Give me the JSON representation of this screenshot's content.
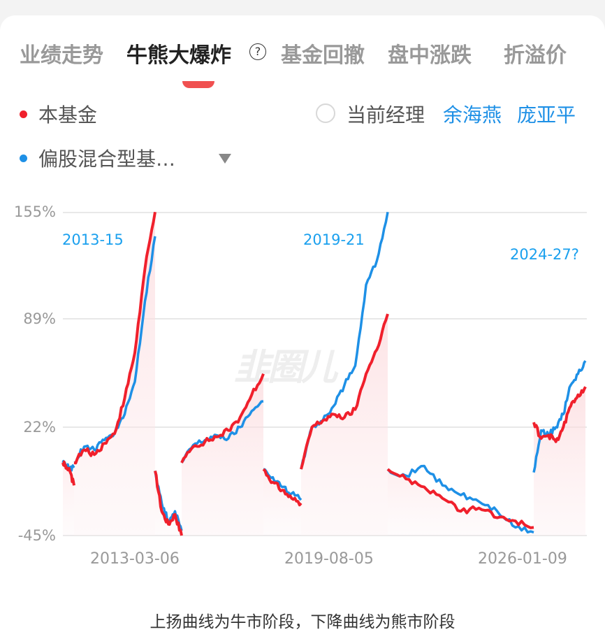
{
  "tabs": [
    {
      "label": "业绩走势",
      "active": false
    },
    {
      "label": "牛熊大爆炸",
      "active": true
    },
    {
      "label": "基金回撤",
      "active": false
    },
    {
      "label": "盘中涨跌",
      "active": false
    },
    {
      "label": "折溢价",
      "active": false
    }
  ],
  "help_icon": "?",
  "legend": {
    "fund": {
      "label": "本基金",
      "color": "#f0202c"
    },
    "benchmark": {
      "label": "偏股混合型基…",
      "color": "#1e90e6"
    },
    "current_manager_label": "当前经理",
    "managers": [
      "余海燕",
      "庞亚平"
    ]
  },
  "watermark": "韭圈儿",
  "footnote": "上扬曲线为牛市阶段，下降曲线为熊市阶段",
  "chart_data": {
    "type": "line",
    "title": "牛熊大爆炸",
    "xlabel": "",
    "ylabel": "",
    "ylim": [
      -45,
      155
    ],
    "yticks": [
      "155%",
      "89%",
      "22%",
      "-45%"
    ],
    "xticks": [
      "2013-03-06",
      "2019-08-05",
      "2026-01-09"
    ],
    "grid": true,
    "legend_position": "top",
    "annotations": [
      "2013-15",
      "2019-21",
      "2024-27?"
    ],
    "segments": [
      {
        "phase": "bear",
        "fund": [
          0,
          -3,
          -6,
          -14
        ],
        "benchmark": [
          0,
          -2,
          -4,
          -2
        ]
      },
      {
        "phase": "bull",
        "fund": [
          0,
          8,
          5,
          12,
          18,
          40,
          68,
          120,
          155
        ],
        "benchmark": [
          0,
          10,
          8,
          14,
          18,
          30,
          50,
          100,
          140
        ]
      },
      {
        "phase": "bear",
        "fund": [
          -5,
          -30,
          -38,
          -32,
          -45
        ],
        "benchmark": [
          -5,
          -25,
          -36,
          -30,
          -42
        ]
      },
      {
        "phase": "bull",
        "fund": [
          0,
          10,
          13,
          16,
          20,
          28,
          42,
          55
        ],
        "benchmark": [
          0,
          11,
          14,
          17,
          15,
          22,
          32,
          38
        ]
      },
      {
        "phase": "bear",
        "fund": [
          -4,
          -12,
          -17,
          -22,
          -25
        ],
        "benchmark": [
          -4,
          -9,
          -15,
          -19,
          -23
        ]
      },
      {
        "phase": "bull",
        "fund": [
          -4,
          22,
          26,
          30,
          28,
          33,
          55,
          70,
          92
        ],
        "benchmark": [
          -4,
          22,
          26,
          35,
          48,
          60,
          110,
          125,
          155
        ]
      },
      {
        "phase": "bear",
        "fund": [
          -4,
          -10,
          -15,
          -22,
          -30,
          -28,
          -34,
          -36,
          -40
        ],
        "benchmark": [
          -4,
          -8,
          -2,
          -14,
          -20,
          -24,
          -30,
          -40,
          -43
        ]
      },
      {
        "phase": "bull",
        "fund": [
          25,
          15,
          17,
          13,
          22,
          35,
          42,
          47
        ],
        "benchmark": [
          -6,
          20,
          17,
          22,
          30,
          48,
          55,
          63
        ]
      }
    ],
    "series": [
      {
        "name": "本基金",
        "color": "#f0202c"
      },
      {
        "name": "偏股混合型基…",
        "color": "#1e90e6"
      }
    ]
  }
}
